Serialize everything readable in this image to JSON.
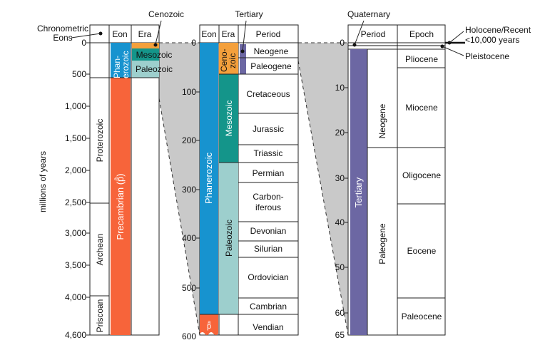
{
  "colors": {
    "phanerozoic": "#1793cf",
    "precambrian": "#f7643a",
    "paleozoic": "#9dcfcd",
    "mesozoic": "#14958a",
    "cenozoic": "#f4a03c",
    "tertiary": "#6c67a3",
    "connector": "#c9c9c9"
  },
  "labels": {
    "top_chronometric": "Chronometric",
    "top_eons": "Eons",
    "top_cenozoic": "Cenozoic",
    "top_tertiary": "Tertiary",
    "top_quaternary": "Quaternary",
    "top_holocene": "Holocene/Recent",
    "top_holocene2": "<10,000 years",
    "top_pleistocene": "Pleistocene",
    "axis_label": "millions of years"
  },
  "col1": {
    "header_eon": "Eon",
    "header_era": "Era",
    "ticks": [
      "0",
      "500",
      "1,000",
      "1,500",
      "2,000",
      "2,500",
      "3,000",
      "3,500",
      "4,000",
      "4,600"
    ],
    "eon_phan_1": "Phan-",
    "eon_phan_2": "erozoic",
    "eon_precambrian": "Precambrian (pͣ)",
    "era_mesozoic": "Mesozoic",
    "era_paleozoic": "Paleozoic",
    "proterozoic": "Proterozoic",
    "archean": "Archean",
    "priscoan": "Priscoan"
  },
  "col2": {
    "header_eon": "Eon",
    "header_era": "Era",
    "header_period": "Period",
    "ticks": [
      "0",
      "100",
      "200",
      "300",
      "400",
      "500",
      "600"
    ],
    "eon_phanerozoic": "Phanerozoic",
    "eon_pe": "pͣ",
    "era_ceno_1": "Ceno-",
    "era_ceno_2": "zoic",
    "era_mesozoic": "Mesozoic",
    "era_paleozoic": "Paleozoic",
    "periods": [
      "Neogene",
      "Paleogene",
      "Cretaceous",
      "Jurassic",
      "Triassic",
      "Permian",
      "Carbon-",
      "iferous",
      "Devonian",
      "Silurian",
      "Ordovician",
      "Cambrian",
      "Vendian"
    ]
  },
  "col3": {
    "header_period": "Period",
    "header_epoch": "Epoch",
    "ticks": [
      "0",
      "10",
      "20",
      "30",
      "40",
      "50",
      "60",
      "65"
    ],
    "tertiary": "Tertiary",
    "neogene": "Neogene",
    "paleogene": "Paleogene",
    "epochs": [
      "Pliocene",
      "Miocene",
      "Oligocene",
      "Eocene",
      "Paleocene"
    ]
  }
}
